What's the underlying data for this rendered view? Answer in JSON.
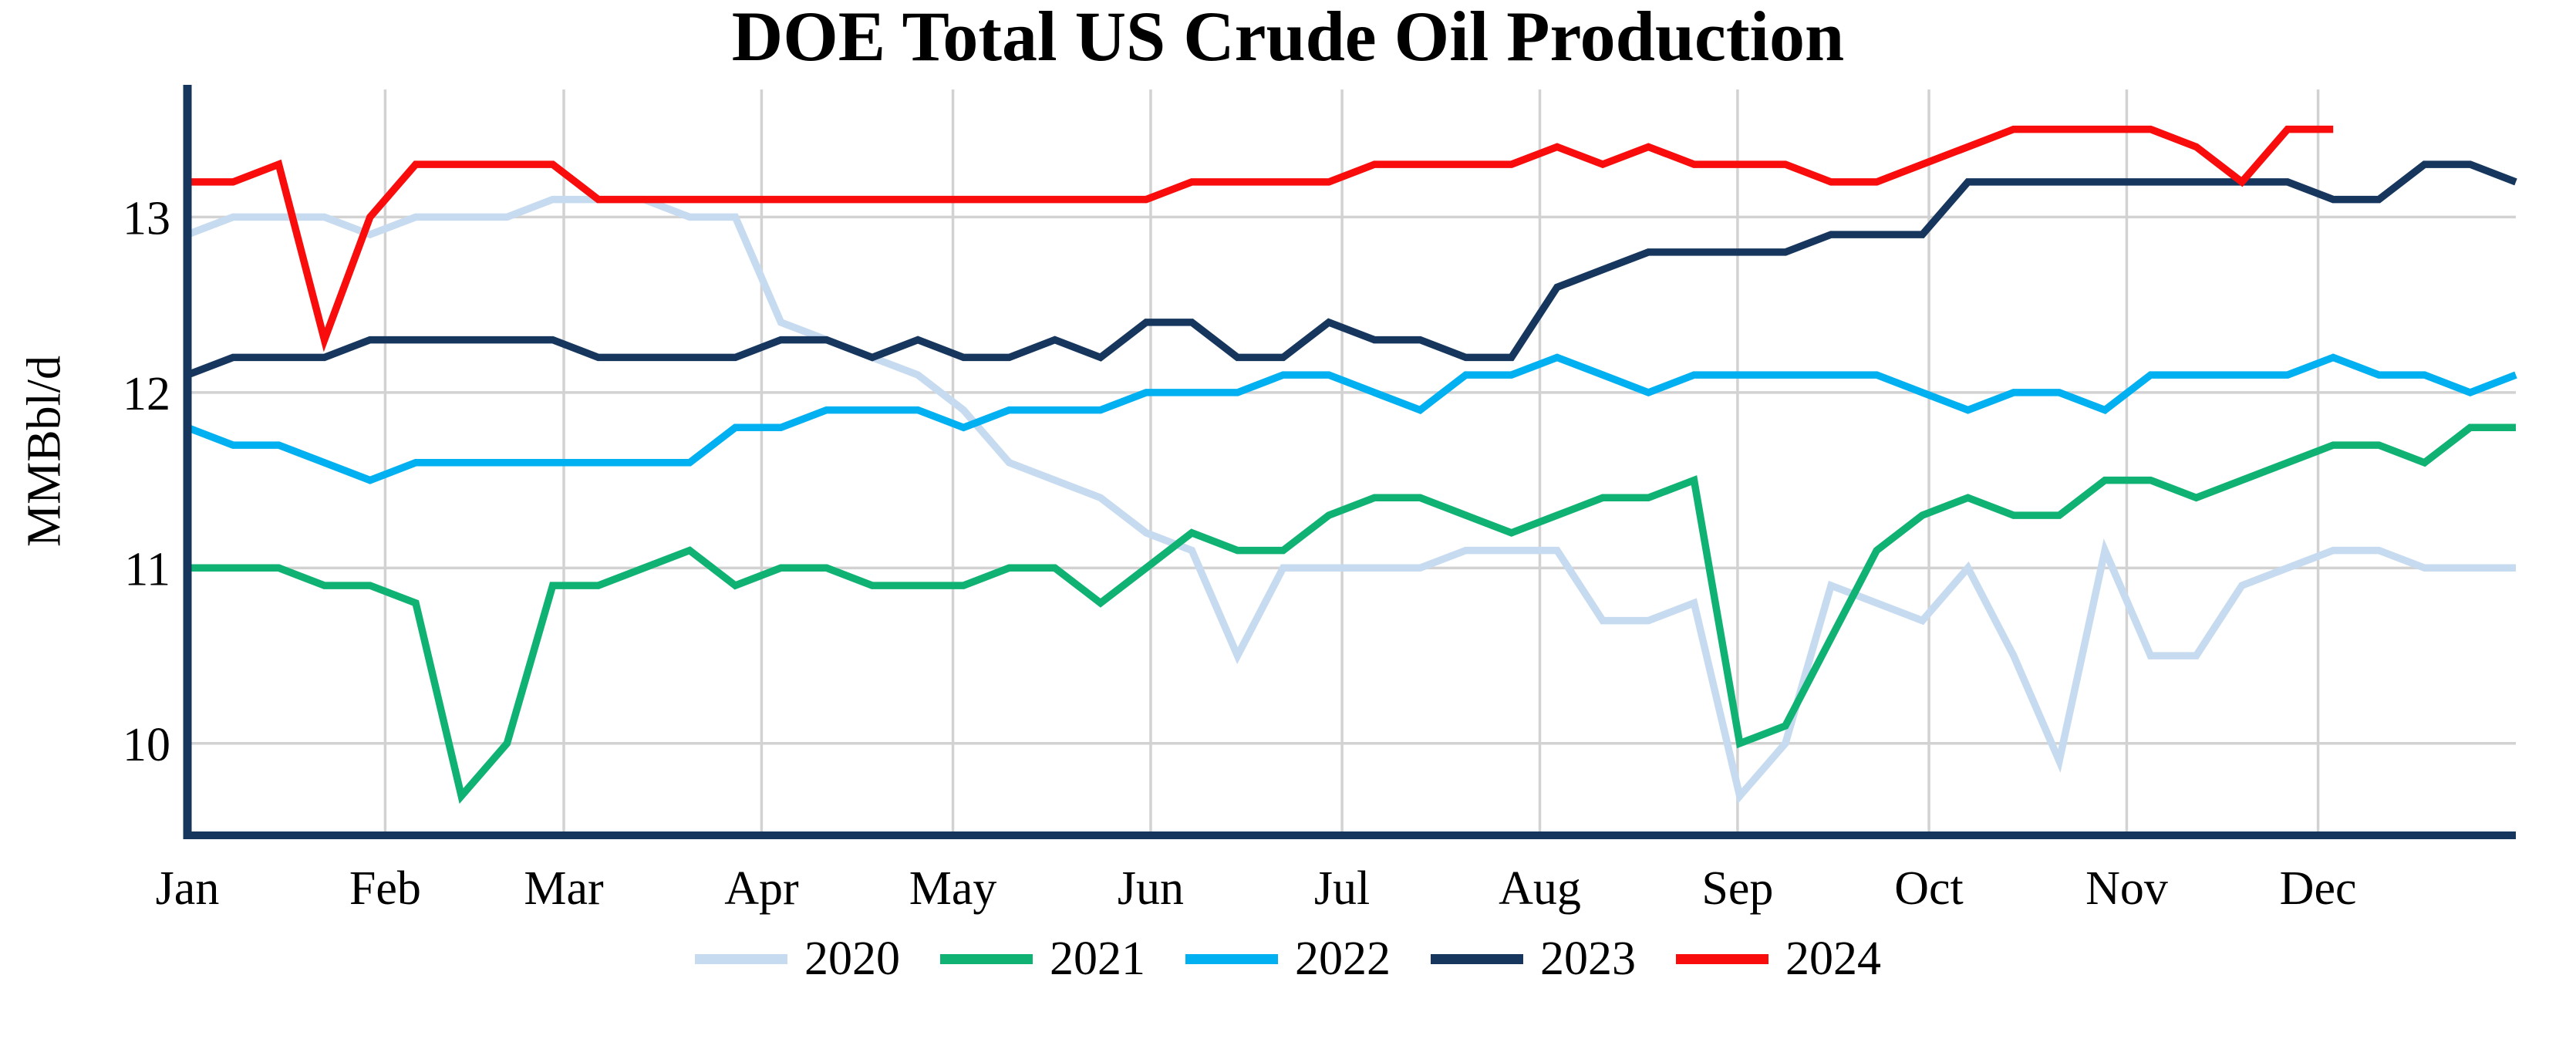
{
  "title": "DOE Total US Crude Oil Production",
  "y_axis_label": "MMBbl/d",
  "chart_data": {
    "type": "line",
    "title": "DOE Total US Crude Oil Production",
    "xlabel": "",
    "ylabel": "MMBbl/d",
    "x_unit": "weekly data, Jan through Dec",
    "x_tick_labels": [
      "Jan",
      "Feb",
      "Mar",
      "Apr",
      "May",
      "Jun",
      "Jul",
      "Aug",
      "Sep",
      "Oct",
      "Nov",
      "Dec"
    ],
    "month_start_days": [
      0,
      31,
      59,
      90,
      120,
      151,
      181,
      212,
      243,
      273,
      304,
      334
    ],
    "days_in_year": 365,
    "weeks": 52,
    "y_ticks": [
      10,
      11,
      12,
      13
    ],
    "y_tick_labels": [
      "10",
      "11",
      "12",
      "13"
    ],
    "ylim": [
      9.476,
      13.727
    ],
    "grid": true,
    "legend_position": "bottom",
    "series": [
      {
        "name": "2020",
        "color": "#c7dbf0",
        "values": [
          12.9,
          13.0,
          13.0,
          13.0,
          12.9,
          13.0,
          13.0,
          13.0,
          13.1,
          13.1,
          13.1,
          13.0,
          13.0,
          12.4,
          12.3,
          12.2,
          12.1,
          11.9,
          11.6,
          11.5,
          11.4,
          11.2,
          11.1,
          10.5,
          11.0,
          11.0,
          11.0,
          11.0,
          11.1,
          11.1,
          11.1,
          10.7,
          10.7,
          10.8,
          9.7,
          10.0,
          10.9,
          10.8,
          10.7,
          11.0,
          10.5,
          9.9,
          11.1,
          10.5,
          10.5,
          10.9,
          11.0,
          11.1,
          11.1,
          11.0,
          11.0,
          11.0
        ]
      },
      {
        "name": "2021",
        "color": "#10b274",
        "values": [
          11.0,
          11.0,
          11.0,
          10.9,
          10.9,
          10.8,
          9.7,
          10.0,
          10.9,
          10.9,
          11.0,
          11.1,
          10.9,
          11.0,
          11.0,
          10.9,
          10.9,
          10.9,
          11.0,
          11.0,
          10.8,
          11.0,
          11.2,
          11.1,
          11.1,
          11.3,
          11.4,
          11.4,
          11.3,
          11.2,
          11.3,
          11.4,
          11.4,
          11.5,
          10.0,
          10.1,
          10.6,
          11.1,
          11.3,
          11.4,
          11.3,
          11.3,
          11.5,
          11.5,
          11.4,
          11.5,
          11.6,
          11.7,
          11.7,
          11.6,
          11.8,
          11.8
        ]
      },
      {
        "name": "2022",
        "color": "#00b0f0",
        "values": [
          11.8,
          11.7,
          11.7,
          11.6,
          11.5,
          11.6,
          11.6,
          11.6,
          11.6,
          11.6,
          11.6,
          11.6,
          11.8,
          11.8,
          11.9,
          11.9,
          11.9,
          11.8,
          11.9,
          11.9,
          11.9,
          12.0,
          12.0,
          12.0,
          12.1,
          12.1,
          12.0,
          11.9,
          12.1,
          12.1,
          12.2,
          12.1,
          12.0,
          12.1,
          12.1,
          12.1,
          12.1,
          12.1,
          12.0,
          11.9,
          12.0,
          12.0,
          11.9,
          12.1,
          12.1,
          12.1,
          12.1,
          12.2,
          12.1,
          12.1,
          12.0,
          12.1
        ]
      },
      {
        "name": "2023",
        "color": "#16365d",
        "values": [
          12.1,
          12.2,
          12.2,
          12.2,
          12.3,
          12.3,
          12.3,
          12.3,
          12.3,
          12.2,
          12.2,
          12.2,
          12.2,
          12.3,
          12.3,
          12.2,
          12.3,
          12.2,
          12.2,
          12.3,
          12.2,
          12.4,
          12.4,
          12.2,
          12.2,
          12.4,
          12.3,
          12.3,
          12.2,
          12.2,
          12.6,
          12.7,
          12.8,
          12.8,
          12.8,
          12.8,
          12.9,
          12.9,
          12.9,
          13.2,
          13.2,
          13.2,
          13.2,
          13.2,
          13.2,
          13.2,
          13.2,
          13.1,
          13.1,
          13.3,
          13.3,
          13.2
        ]
      },
      {
        "name": "2024",
        "color": "#f80c0c",
        "values": [
          13.2,
          13.2,
          13.3,
          12.3,
          13.0,
          13.3,
          13.3,
          13.3,
          13.3,
          13.1,
          13.1,
          13.1,
          13.1,
          13.1,
          13.1,
          13.1,
          13.1,
          13.1,
          13.1,
          13.1,
          13.1,
          13.1,
          13.2,
          13.2,
          13.2,
          13.2,
          13.3,
          13.3,
          13.3,
          13.3,
          13.4,
          13.3,
          13.4,
          13.3,
          13.3,
          13.3,
          13.2,
          13.2,
          13.3,
          13.4,
          13.5,
          13.5,
          13.5,
          13.5,
          13.4,
          13.2,
          13.5,
          13.5
        ]
      }
    ]
  },
  "colors": {
    "background": "#ffffff",
    "axis": "#16365d",
    "grid": "#d2d2d2",
    "text": "#000000"
  }
}
